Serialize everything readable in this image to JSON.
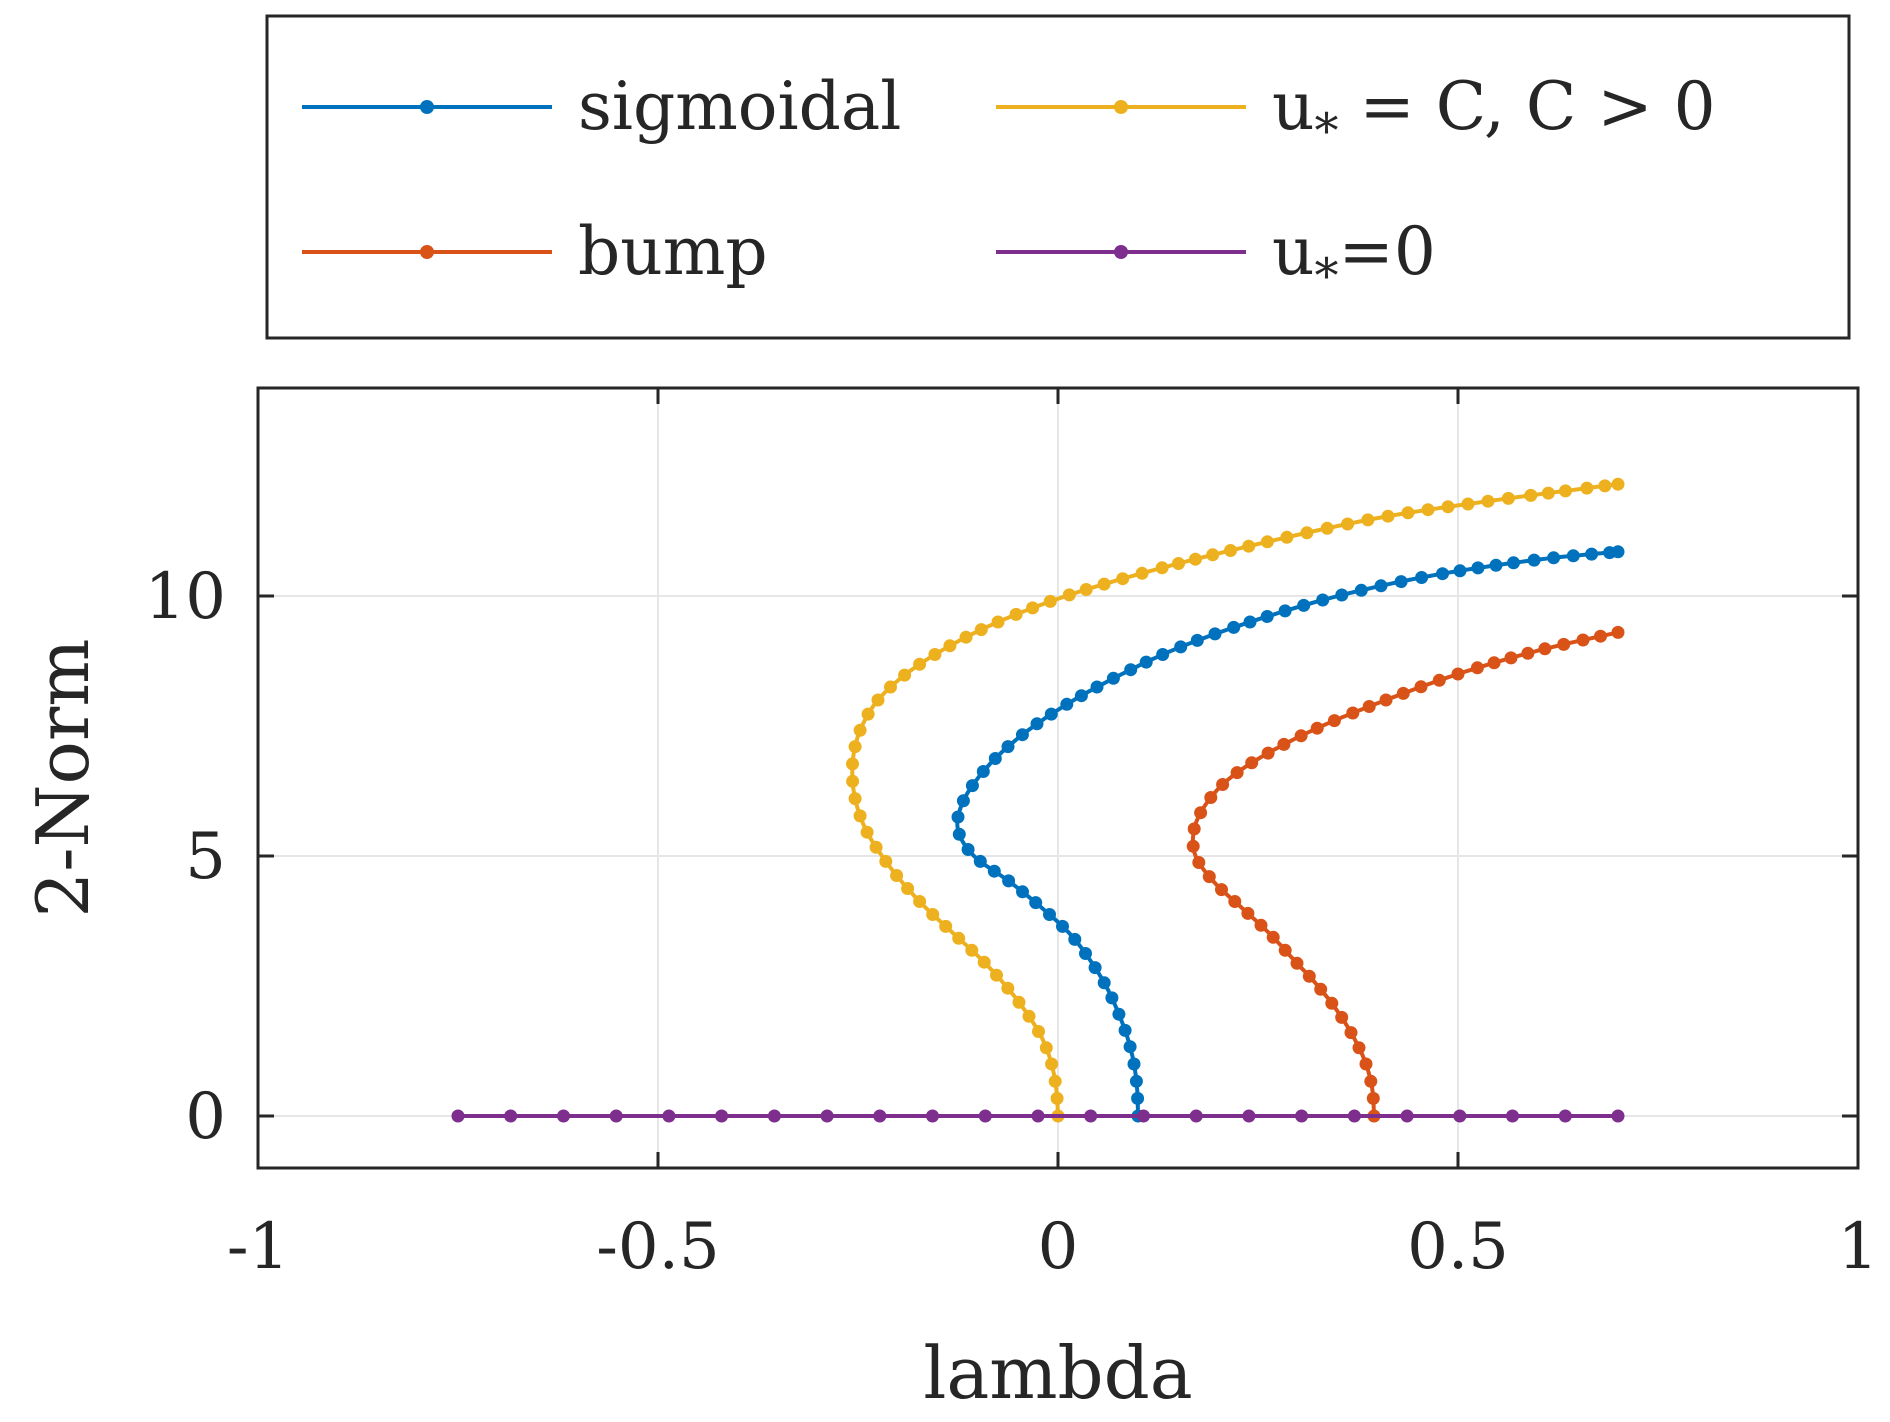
{
  "chart_data": {
    "type": "line",
    "xlabel": "lambda",
    "ylabel": "2-Norm",
    "xlim": [
      -1,
      1
    ],
    "ylim": [
      -1,
      14
    ],
    "xticks": [
      -1,
      -0.5,
      0,
      0.5,
      1
    ],
    "xtick_labels": [
      "-1",
      "-0.5",
      "0",
      "0.5",
      "1"
    ],
    "yticks": [
      0,
      5,
      10
    ],
    "ytick_labels": [
      "0",
      "5",
      "10"
    ],
    "grid": true,
    "legend_placement": "outside-top",
    "legend_columns": 2,
    "series": [
      {
        "name": "sigmoidal",
        "color": "#0072BD",
        "points": [
          [
            0.1,
            0.0
          ],
          [
            0.099,
            0.5
          ],
          [
            0.095,
            1.0
          ],
          [
            0.087,
            1.5
          ],
          [
            0.075,
            2.0
          ],
          [
            0.06,
            2.5
          ],
          [
            0.04,
            3.0
          ],
          [
            0.015,
            3.5
          ],
          [
            -0.02,
            4.0
          ],
          [
            -0.06,
            4.5
          ],
          [
            -0.105,
            5.0
          ],
          [
            -0.125,
            5.5
          ],
          [
            -0.12,
            6.0
          ],
          [
            -0.1,
            6.5
          ],
          [
            -0.07,
            7.0
          ],
          [
            -0.03,
            7.5
          ],
          [
            0.02,
            8.0
          ],
          [
            0.08,
            8.5
          ],
          [
            0.15,
            9.0
          ],
          [
            0.24,
            9.5
          ],
          [
            0.35,
            10.0
          ],
          [
            0.47,
            10.4
          ],
          [
            0.6,
            10.7
          ],
          [
            0.7,
            10.85
          ]
        ]
      },
      {
        "name": "bump",
        "color": "#D95319",
        "points": [
          [
            0.395,
            0.0
          ],
          [
            0.393,
            0.5
          ],
          [
            0.385,
            1.0
          ],
          [
            0.37,
            1.5
          ],
          [
            0.35,
            2.0
          ],
          [
            0.325,
            2.5
          ],
          [
            0.295,
            3.0
          ],
          [
            0.265,
            3.5
          ],
          [
            0.23,
            4.0
          ],
          [
            0.195,
            4.5
          ],
          [
            0.172,
            5.0
          ],
          [
            0.17,
            5.5
          ],
          [
            0.185,
            6.0
          ],
          [
            0.215,
            6.5
          ],
          [
            0.265,
            7.0
          ],
          [
            0.33,
            7.5
          ],
          [
            0.41,
            8.0
          ],
          [
            0.5,
            8.5
          ],
          [
            0.6,
            8.95
          ],
          [
            0.7,
            9.3
          ]
        ]
      },
      {
        "name": "u_* = C, C > 0",
        "color": "#EDB120",
        "points": [
          [
            0.0,
            0.0
          ],
          [
            -0.002,
            0.5
          ],
          [
            -0.008,
            1.0
          ],
          [
            -0.02,
            1.5
          ],
          [
            -0.04,
            2.0
          ],
          [
            -0.065,
            2.5
          ],
          [
            -0.095,
            3.0
          ],
          [
            -0.13,
            3.5
          ],
          [
            -0.165,
            4.0
          ],
          [
            -0.195,
            4.5
          ],
          [
            -0.22,
            5.0
          ],
          [
            -0.24,
            5.5
          ],
          [
            -0.252,
            6.0
          ],
          [
            -0.257,
            6.5
          ],
          [
            -0.255,
            7.0
          ],
          [
            -0.245,
            7.5
          ],
          [
            -0.225,
            8.0
          ],
          [
            -0.19,
            8.5
          ],
          [
            -0.14,
            9.0
          ],
          [
            -0.075,
            9.5
          ],
          [
            0.01,
            10.0
          ],
          [
            0.12,
            10.5
          ],
          [
            0.25,
            11.0
          ],
          [
            0.4,
            11.5
          ],
          [
            0.55,
            11.85
          ],
          [
            0.7,
            12.15
          ]
        ]
      },
      {
        "name": "u_*=0",
        "color": "#7E2F8E",
        "points": [
          [
            -0.75,
            0.0
          ],
          [
            0.7,
            0.0
          ]
        ]
      }
    ]
  }
}
